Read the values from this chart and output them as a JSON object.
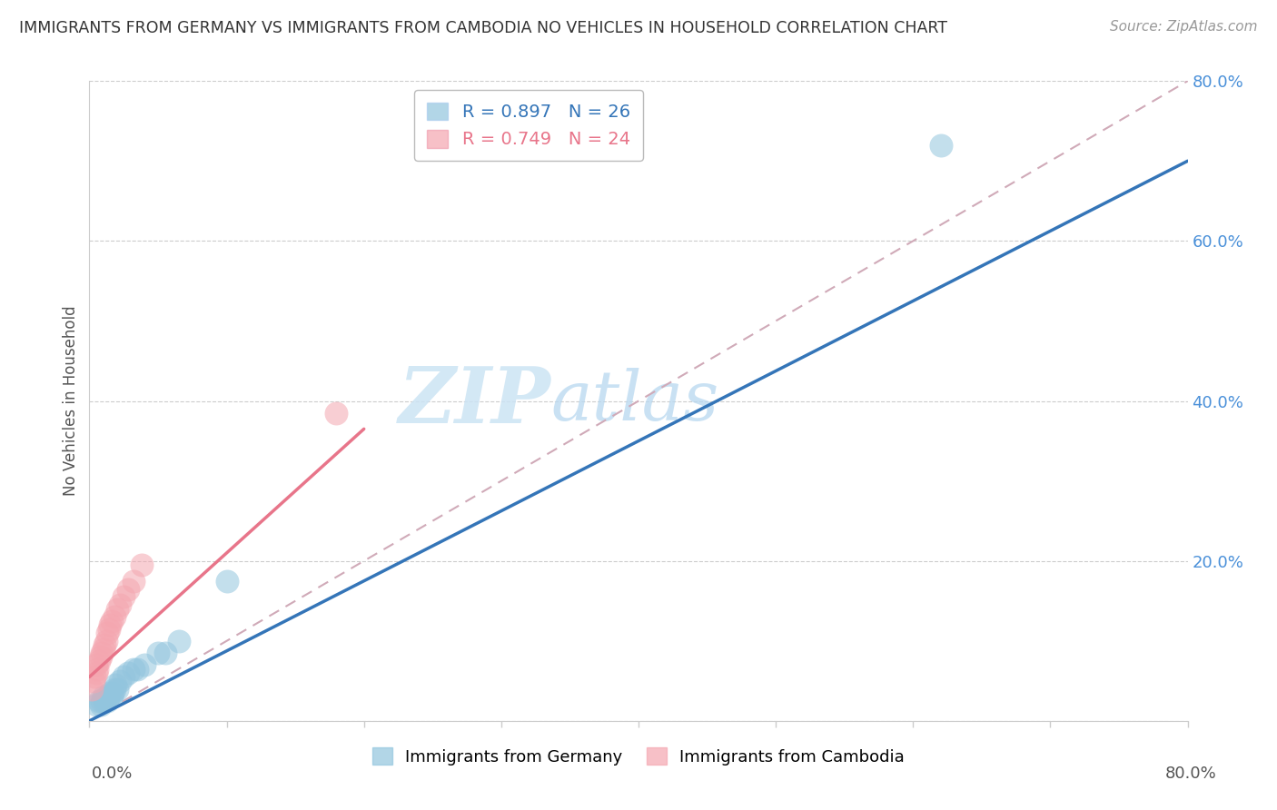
{
  "title": "IMMIGRANTS FROM GERMANY VS IMMIGRANTS FROM CAMBODIA NO VEHICLES IN HOUSEHOLD CORRELATION CHART",
  "source": "Source: ZipAtlas.com",
  "ylabel": "No Vehicles in Household",
  "xlim": [
    0,
    0.8
  ],
  "ylim": [
    0,
    0.8
  ],
  "legend_germany": "R = 0.897   N = 26",
  "legend_cambodia": "R = 0.749   N = 24",
  "germany_color": "#92c5de",
  "cambodia_color": "#f4a6b0",
  "germany_line_color": "#3475b8",
  "cambodia_line_color": "#e8758a",
  "diagonal_color": "#d0aab8",
  "watermark_zip": "ZIP",
  "watermark_atlas": "atlas",
  "germany_x": [
    0.005,
    0.007,
    0.008,
    0.009,
    0.01,
    0.011,
    0.012,
    0.013,
    0.014,
    0.015,
    0.016,
    0.017,
    0.018,
    0.019,
    0.02,
    0.022,
    0.025,
    0.028,
    0.032,
    0.035,
    0.04,
    0.05,
    0.055,
    0.065,
    0.1,
    0.62
  ],
  "germany_y": [
    0.02,
    0.025,
    0.02,
    0.025,
    0.03,
    0.025,
    0.03,
    0.025,
    0.03,
    0.035,
    0.03,
    0.035,
    0.04,
    0.045,
    0.04,
    0.05,
    0.055,
    0.06,
    0.065,
    0.065,
    0.07,
    0.085,
    0.085,
    0.1,
    0.175,
    0.72
  ],
  "cambodia_x": [
    0.002,
    0.003,
    0.004,
    0.005,
    0.005,
    0.006,
    0.007,
    0.008,
    0.009,
    0.01,
    0.011,
    0.012,
    0.013,
    0.014,
    0.015,
    0.016,
    0.018,
    0.02,
    0.022,
    0.025,
    0.028,
    0.032,
    0.038,
    0.18
  ],
  "cambodia_y": [
    0.04,
    0.05,
    0.055,
    0.06,
    0.07,
    0.065,
    0.075,
    0.08,
    0.085,
    0.09,
    0.095,
    0.1,
    0.11,
    0.115,
    0.12,
    0.125,
    0.13,
    0.14,
    0.145,
    0.155,
    0.165,
    0.175,
    0.195,
    0.385
  ],
  "germany_line_x0": 0.0,
  "germany_line_y0": 0.0,
  "germany_line_x1": 0.8,
  "germany_line_y1": 0.7,
  "cambodia_line_x0": 0.0,
  "cambodia_line_y0": 0.055,
  "cambodia_line_x1": 0.2,
  "cambodia_line_y1": 0.365
}
